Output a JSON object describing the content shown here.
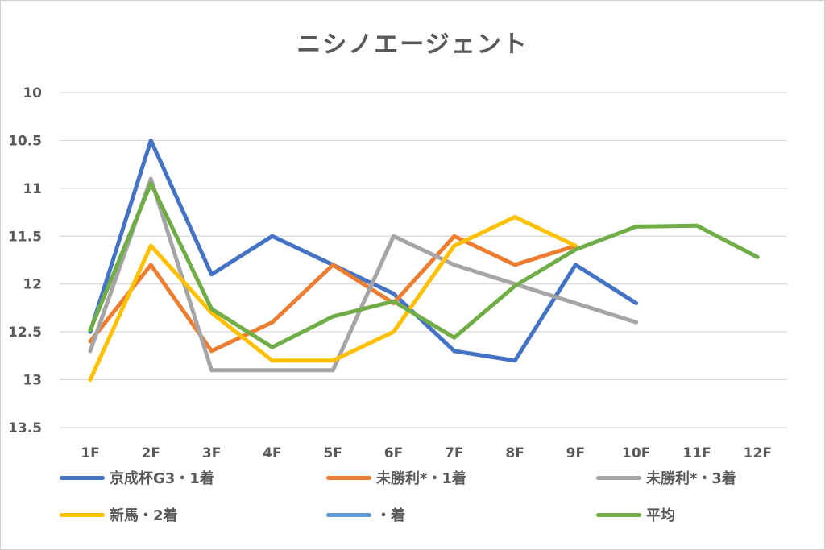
{
  "chart_data": {
    "type": "line",
    "title": "ニシノエージェント",
    "categories": [
      "1F",
      "2F",
      "3F",
      "4F",
      "5F",
      "6F",
      "7F",
      "8F",
      "9F",
      "10F",
      "11F",
      "12F"
    ],
    "y_axis": {
      "reversed": true,
      "ylim": [
        10,
        13.5
      ],
      "ticks": [
        "10",
        "10.5",
        "11",
        "11.5",
        "12",
        "12.5",
        "13",
        "13.5"
      ]
    },
    "grid": true,
    "legend_position": "bottom",
    "series": [
      {
        "name": "京成杯G3・1着",
        "color": "#4472C4",
        "values": [
          12.5,
          10.5,
          11.9,
          11.5,
          11.8,
          12.1,
          12.7,
          12.8,
          11.8,
          12.2,
          null,
          null
        ]
      },
      {
        "name": "未勝利*・1着",
        "color": "#ED7D31",
        "values": [
          12.6,
          11.8,
          12.7,
          12.4,
          11.8,
          12.2,
          11.5,
          11.8,
          11.6,
          null,
          null,
          null
        ]
      },
      {
        "name": "未勝利*・3着",
        "color": "#A5A5A5",
        "values": [
          12.7,
          10.9,
          12.9,
          12.9,
          12.9,
          11.5,
          11.8,
          12.0,
          12.2,
          12.4,
          null,
          null
        ]
      },
      {
        "name": "新馬・2着",
        "color": "#FFC000",
        "values": [
          13.0,
          11.6,
          12.3,
          12.8,
          12.8,
          12.5,
          11.6,
          11.3,
          11.6,
          null,
          null,
          null
        ]
      },
      {
        "name": "・着",
        "color": "#5B9BD5",
        "values": [
          null,
          null,
          null,
          null,
          null,
          null,
          null,
          null,
          null,
          null,
          null,
          null
        ]
      },
      {
        "name": "平均",
        "color": "#70AD47",
        "values": [
          12.48,
          10.95,
          12.26,
          12.66,
          12.34,
          12.18,
          12.56,
          12.02,
          11.64,
          11.4,
          11.39,
          11.72
        ]
      }
    ]
  }
}
